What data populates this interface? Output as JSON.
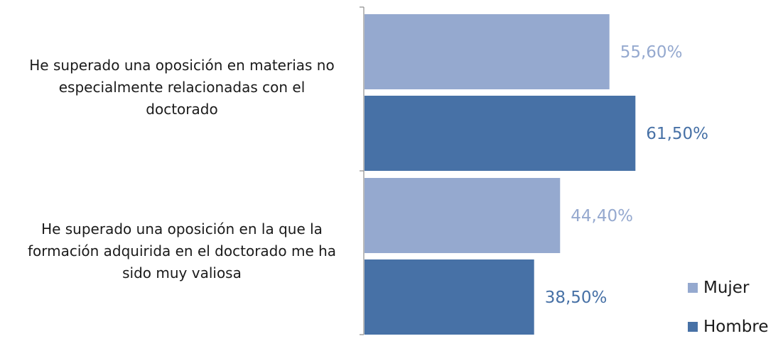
{
  "chart_data": {
    "type": "bar",
    "orientation": "horizontal",
    "categories": [
      {
        "label": "He superado una oposición en materias no especialmente relacionadas con el doctorado",
        "lines": [
          "He superado una oposición en materias no",
          "especialmente relacionadas con el",
          "doctorado"
        ]
      },
      {
        "label": "He superado una oposición en la que la formación adquirida en el doctorado me ha sido muy valiosa",
        "lines": [
          "He superado una oposición en la que la",
          "formación adquirida en el doctorado me ha",
          "sido muy valiosa"
        ]
      }
    ],
    "series": [
      {
        "name": "Mujer",
        "color": "#95A9CF",
        "values": [
          55.6,
          44.4
        ],
        "labels": [
          "55,60%",
          "44,40%"
        ]
      },
      {
        "name": "Hombre",
        "color": "#4771A6",
        "values": [
          61.5,
          38.5
        ],
        "labels": [
          "61,50%",
          "38,50%"
        ]
      }
    ],
    "xlim": [
      0,
      100
    ],
    "grid": false,
    "legend": {
      "position": "bottom-right",
      "items": [
        "Mujer",
        "Hombre"
      ]
    },
    "title": "",
    "xlabel": "",
    "ylabel": ""
  }
}
